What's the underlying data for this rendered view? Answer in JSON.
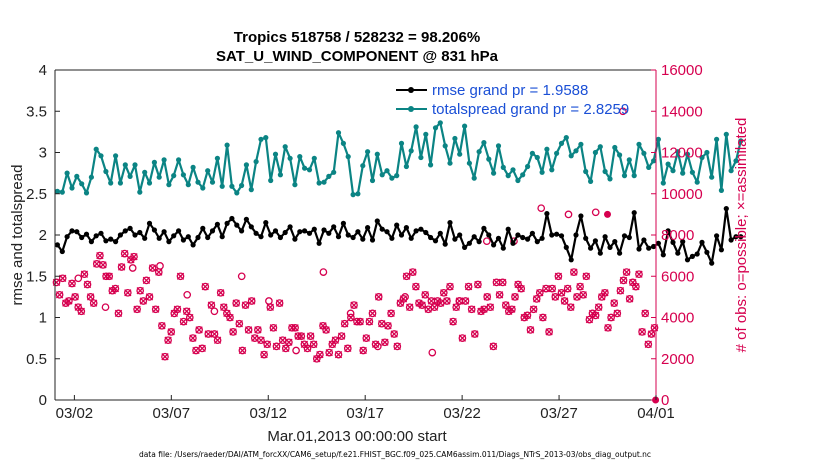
{
  "chart_data": {
    "type": "line",
    "title_line1": "Tropics 518758 / 528232 = 98.206%",
    "title_line2": "SAT_U_WIND_COMPONENT @ 831 hPa",
    "xlabel": "Mar.01,2013 00:00:00 start",
    "ylabel_left": "rmse and totalspread",
    "ylabel_right": "# of obs: o=possible; ×=assimilated",
    "xlim": [
      0,
      31
    ],
    "ylim_left": [
      0,
      4
    ],
    "ylim_right": [
      0,
      16000
    ],
    "x_ticks": [
      {
        "value": 1,
        "label": "03/02"
      },
      {
        "value": 6,
        "label": "03/07"
      },
      {
        "value": 11,
        "label": "03/12"
      },
      {
        "value": 16,
        "label": "03/17"
      },
      {
        "value": 21,
        "label": "03/22"
      },
      {
        "value": 26,
        "label": "03/27"
      },
      {
        "value": 31,
        "label": "04/01"
      }
    ],
    "y_ticks_left": [
      "0",
      "0.5",
      "1",
      "1.5",
      "2",
      "2.5",
      "3",
      "3.5",
      "4"
    ],
    "y_ticks_right": [
      "0",
      "2000",
      "4000",
      "6000",
      "8000",
      "10000",
      "12000",
      "14000",
      "16000"
    ],
    "legend": {
      "position": "top-right",
      "rmse_label": "rmse grand pr = 1.9588",
      "spread_label": "totalspread grand pr = 2.8259"
    },
    "colors": {
      "rmse": "#000000",
      "spread": "#0b8484",
      "obs": "#d6004f",
      "legend_text": "#1a4fd6"
    },
    "step_days": 0.25,
    "series": [
      {
        "name": "rmse",
        "axis": "left",
        "values": [
          1.88,
          1.8,
          1.98,
          2.05,
          2.04,
          1.97,
          2.01,
          1.92,
          1.99,
          2.02,
          1.93,
          1.95,
          1.92,
          2.0,
          2.05,
          2.08,
          2.0,
          2.03,
          1.96,
          2.14,
          2.06,
          1.96,
          2.04,
          1.92,
          1.99,
          2.05,
          1.94,
          1.98,
          1.88,
          1.97,
          2.08,
          1.97,
          2.05,
          2.13,
          1.98,
          2.14,
          2.2,
          2.12,
          2.05,
          2.19,
          2.1,
          2.02,
          1.98,
          2.15,
          2.0,
          2.05,
          1.97,
          2.03,
          2.1,
          1.95,
          2.04,
          2.05,
          2.02,
          2.07,
          1.9,
          2.06,
          2.02,
          2.1,
          1.98,
          2.14,
          2.0,
          1.97,
          2.04,
          1.95,
          2.09,
          1.94,
          2.17,
          2.07,
          2.04,
          1.96,
          2.12,
          2.0,
          2.09,
          1.96,
          2.05,
          2.07,
          2.03,
          1.97,
          1.93,
          2.02,
          1.89,
          2.15,
          1.95,
          2.0,
          1.85,
          1.9,
          1.98,
          1.92,
          2.08,
          2.0,
          1.88,
          1.96,
          1.84,
          2.07,
          1.9,
          2.0,
          1.97,
          1.95,
          2.02,
          1.92,
          1.96,
          2.26,
          2.0,
          2.01,
          1.99,
          1.85,
          1.7,
          2.0,
          2.23,
          1.96,
          1.84,
          1.93,
          1.78,
          1.98,
          1.85,
          1.92,
          1.78,
          1.99,
          1.97,
          2.27,
          1.83,
          1.94,
          1.84,
          1.86,
          1.9,
          1.76,
          2.05,
          1.91,
          1.78,
          1.92,
          1.7,
          1.74,
          1.77,
          1.91,
          1.79,
          1.66,
          1.99,
          1.82,
          2.32,
          1.94,
          1.98,
          1.98
        ]
      },
      {
        "name": "totalspread",
        "axis": "left",
        "values": [
          2.53,
          2.52,
          2.75,
          2.57,
          2.71,
          2.62,
          2.51,
          2.7,
          3.04,
          2.96,
          2.77,
          2.63,
          2.96,
          2.63,
          2.85,
          2.71,
          2.85,
          2.52,
          2.76,
          2.63,
          2.88,
          2.7,
          2.91,
          2.61,
          2.72,
          2.91,
          2.73,
          2.61,
          2.82,
          2.64,
          2.57,
          2.78,
          2.64,
          2.93,
          2.59,
          3.09,
          2.59,
          2.51,
          2.6,
          2.85,
          2.55,
          2.89,
          3.16,
          3.18,
          2.66,
          2.98,
          2.73,
          3.07,
          2.93,
          2.61,
          2.95,
          2.81,
          2.79,
          2.93,
          2.63,
          2.64,
          2.71,
          2.76,
          3.24,
          3.11,
          2.95,
          2.49,
          2.5,
          2.84,
          3.01,
          2.66,
          2.98,
          2.73,
          2.78,
          2.69,
          2.72,
          3.11,
          2.83,
          3.02,
          3.31,
          2.94,
          3.22,
          2.85,
          3.3,
          3.36,
          3.08,
          2.87,
          3.17,
          2.98,
          3.32,
          2.87,
          2.69,
          3.01,
          3.12,
          2.92,
          2.75,
          3.08,
          2.82,
          2.72,
          2.79,
          2.66,
          2.73,
          2.83,
          2.99,
          2.94,
          2.76,
          3.04,
          2.79,
          2.99,
          3.11,
          3.18,
          2.96,
          3.02,
          3.1,
          2.77,
          2.65,
          3.0,
          3.07,
          2.77,
          2.68,
          3.06,
          2.97,
          2.72,
          2.91,
          2.72,
          3.1,
          2.99,
          2.82,
          2.9,
          3.16,
          2.63,
          2.86,
          2.78,
          3.01,
          2.75,
          2.98,
          2.76,
          2.64,
          2.94,
          3.0,
          2.7,
          3.16,
          2.54,
          3.22,
          2.78,
          2.9,
          3.14
        ]
      },
      {
        "name": "obs_assimilated",
        "axis": "right",
        "values": [
          5700,
          5100,
          5900,
          4700,
          4800,
          5650,
          5000,
          4500,
          4300,
          6100,
          5600,
          5000,
          4700,
          6600,
          7000,
          6550,
          6000,
          6000,
          5300,
          5400,
          4200,
          6450,
          7100,
          5200,
          6800,
          6950,
          4400,
          5300,
          4800,
          5800,
          5000,
          6400,
          4400,
          6200,
          3600,
          2100,
          2900,
          3300,
          4200,
          4400,
          6000,
          3800,
          4300,
          4000,
          3000,
          2400,
          3400,
          2500,
          5500,
          3200,
          4600,
          3200,
          2900,
          5200,
          4500,
          4200,
          4000,
          3300,
          4700,
          3700,
          2400,
          4600,
          3400,
          4800,
          3000,
          3400,
          2900,
          2200,
          2700,
          4500,
          3500,
          2600,
          4700,
          2900,
          2500,
          2800,
          3500,
          3500,
          3100,
          3100,
          2700,
          2500,
          3100,
          2700,
          2000,
          2200,
          3600,
          3400,
          2300,
          2700,
          2900,
          2200,
          3100,
          3700,
          2500,
          4000,
          4600,
          3800,
          3800,
          2400,
          3000,
          3800,
          4200,
          2700,
          5000,
          3700,
          2800,
          3600,
          4200,
          3200,
          2600,
          4700,
          4900,
          6000,
          4500,
          6200,
          5500,
          4700,
          4600,
          5100,
          4400,
          4800,
          4500,
          4800,
          4700,
          5200,
          4800,
          5500,
          3800,
          4500,
          4800,
          3000,
          4800,
          5500,
          4400,
          3200,
          5600,
          4300,
          4400,
          5000,
          4500,
          2600,
          5700,
          5100,
          5700,
          4600,
          4300,
          4400,
          5000,
          5600,
          5400,
          4000,
          4100,
          3400,
          4400,
          4900,
          5200,
          4000,
          5400,
          3300,
          5400,
          5000,
          6000,
          5200,
          4800,
          5400,
          4500,
          6200,
          5000,
          5500,
          5100,
          6000,
          3900,
          4200,
          4100,
          4500,
          5000,
          5200,
          3500,
          4000,
          4700,
          4200,
          5300,
          5800,
          6200,
          4900,
          5700,
          5500,
          6100,
          3300,
          4200,
          2700,
          3200,
          3500
        ]
      },
      {
        "name": "obs_possible_extra",
        "axis": "right",
        "values": [
          5900,
          4500,
          6400,
          6500,
          5100,
          4300,
          6000,
          4800,
          2400,
          6200,
          4200,
          2600,
          5000,
          2300,
          4800,
          7700,
          7700,
          9300,
          9000,
          9100,
          14000
        ]
      }
    ]
  },
  "footer": "data file: /Users/raeder/DAI/ATM_forcXX/CAM6_setup/f.e21.FHIST_BGC.f09_025.CAM6assim.011/Diags_NTrS_2013-03/obs_diag_output.nc"
}
